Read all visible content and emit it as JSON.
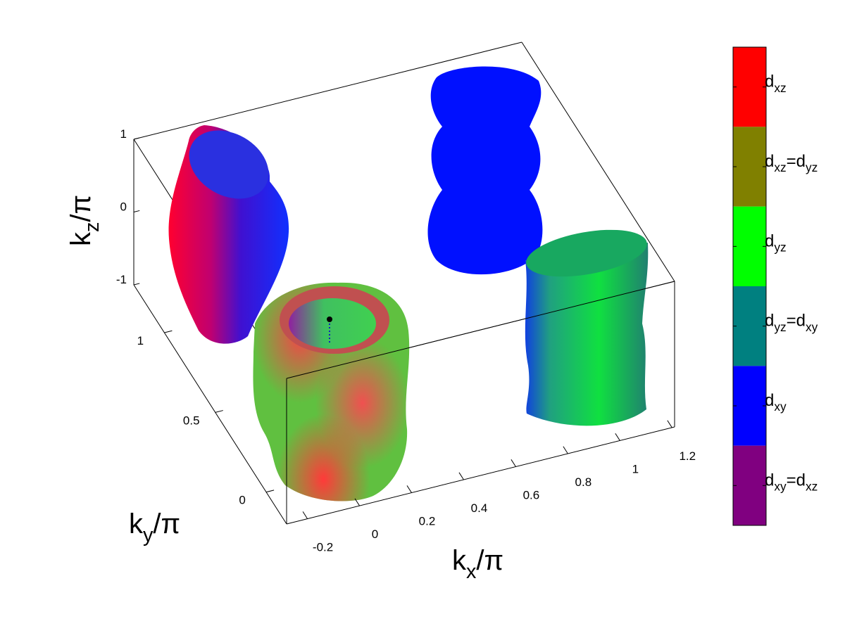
{
  "chart_data": {
    "type": "surface3d",
    "xlabel": [
      {
        "text": "k"
      },
      {
        "text": "x",
        "sub": true
      },
      {
        "text": "/π"
      }
    ],
    "ylabel": [
      {
        "text": "k"
      },
      {
        "text": "y",
        "sub": true
      },
      {
        "text": "/π"
      }
    ],
    "zlabel": [
      {
        "text": "k"
      },
      {
        "text": "z",
        "sub": true
      },
      {
        "text": "/π"
      }
    ],
    "xlim": [
      -0.28,
      1.21
    ],
    "ylim": [
      -0.2,
      1.3
    ],
    "zlim": [
      -1,
      1
    ],
    "xticks": [
      -0.2,
      0,
      0.2,
      0.4,
      0.6,
      0.8,
      1,
      1.2
    ],
    "yticks": [
      0,
      0.5,
      1
    ],
    "zticks": [
      -1,
      0,
      1
    ],
    "colorbar": [
      {
        "color": "#ff0000",
        "label": [
          {
            "text": "d"
          },
          {
            "text": "xz",
            "sub": true
          }
        ]
      },
      {
        "color": "#808000",
        "label": [
          {
            "text": "d"
          },
          {
            "text": "xz",
            "sub": true
          },
          {
            "text": "=d"
          },
          {
            "text": "yz",
            "sub": true
          }
        ]
      },
      {
        "color": "#00ff00",
        "label": [
          {
            "text": "d"
          },
          {
            "text": "yz",
            "sub": true
          }
        ]
      },
      {
        "color": "#008080",
        "label": [
          {
            "text": "d"
          },
          {
            "text": "yz",
            "sub": true
          },
          {
            "text": "=d"
          },
          {
            "text": "xy",
            "sub": true
          }
        ]
      },
      {
        "color": "#0000ff",
        "label": [
          {
            "text": "d"
          },
          {
            "text": "xy",
            "sub": true
          }
        ]
      },
      {
        "color": "#800080",
        "label": [
          {
            "text": "d"
          },
          {
            "text": "xy",
            "sub": true
          },
          {
            "text": "=d"
          },
          {
            "text": "xz",
            "sub": true
          }
        ]
      }
    ]
  }
}
